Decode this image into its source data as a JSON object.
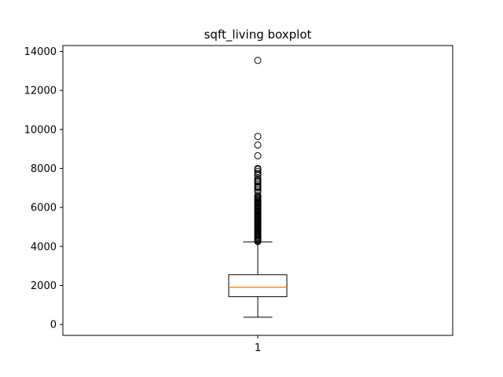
{
  "chart_data": {
    "type": "boxplot",
    "title": "sqft_living boxplot",
    "xlabel": "",
    "ylabel": "",
    "categories": [
      "1"
    ],
    "ylim": [
      -560,
      14300
    ],
    "yticks": [
      0,
      2000,
      4000,
      6000,
      8000,
      10000,
      12000,
      14000
    ],
    "box": {
      "whisker_low": 370,
      "q1": 1427,
      "median": 1910,
      "q3": 2550,
      "whisker_high": 4230
    },
    "outliers": [
      4250,
      4300,
      4350,
      4400,
      4450,
      4500,
      4550,
      4600,
      4650,
      4700,
      4750,
      4800,
      4850,
      4900,
      4950,
      5000,
      5050,
      5100,
      5150,
      5200,
      5250,
      5300,
      5350,
      5400,
      5450,
      5500,
      5550,
      5600,
      5650,
      5700,
      5750,
      5800,
      5850,
      5900,
      5950,
      6000,
      6050,
      6100,
      6150,
      6200,
      6250,
      6300,
      6350,
      6400,
      6450,
      6500,
      6550,
      6600,
      6800,
      6900,
      7000,
      7050,
      7100,
      7200,
      7300,
      7350,
      7400,
      7500,
      7650,
      7750,
      7850,
      7950,
      8000,
      8650,
      9200,
      9640,
      13540
    ],
    "colors": {
      "median": "#ff7f0e",
      "box": "#000000"
    },
    "grid": false
  }
}
